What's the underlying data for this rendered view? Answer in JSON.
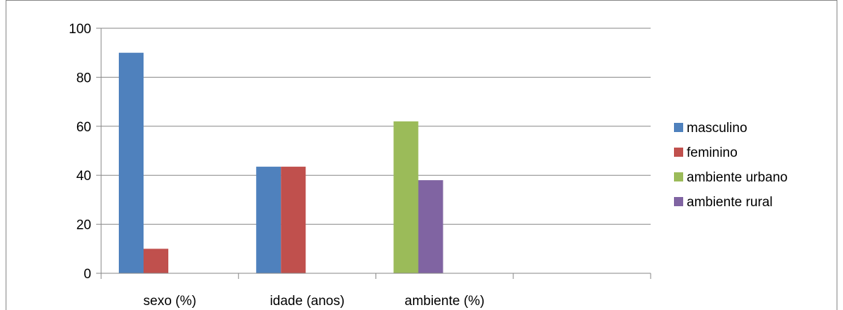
{
  "chart_data": {
    "type": "bar",
    "categories": [
      "sexo (%)",
      "idade (anos)",
      "ambiente (%)",
      ""
    ],
    "series": [
      {
        "name": "masculino",
        "color": "#4F81BD",
        "values": [
          90,
          43.5,
          null,
          null
        ]
      },
      {
        "name": "feminino",
        "color": "#C0504D",
        "values": [
          10,
          43.5,
          null,
          null
        ]
      },
      {
        "name": "ambiente urbano",
        "color": "#9BBB59",
        "values": [
          null,
          null,
          62,
          null
        ]
      },
      {
        "name": "ambiente rural",
        "color": "#8064A2",
        "values": [
          null,
          null,
          38,
          null
        ]
      }
    ],
    "ylim": [
      0,
      100
    ],
    "yticks": [
      0,
      20,
      40,
      60,
      80,
      100
    ],
    "grid": true,
    "legend_position": "right"
  }
}
